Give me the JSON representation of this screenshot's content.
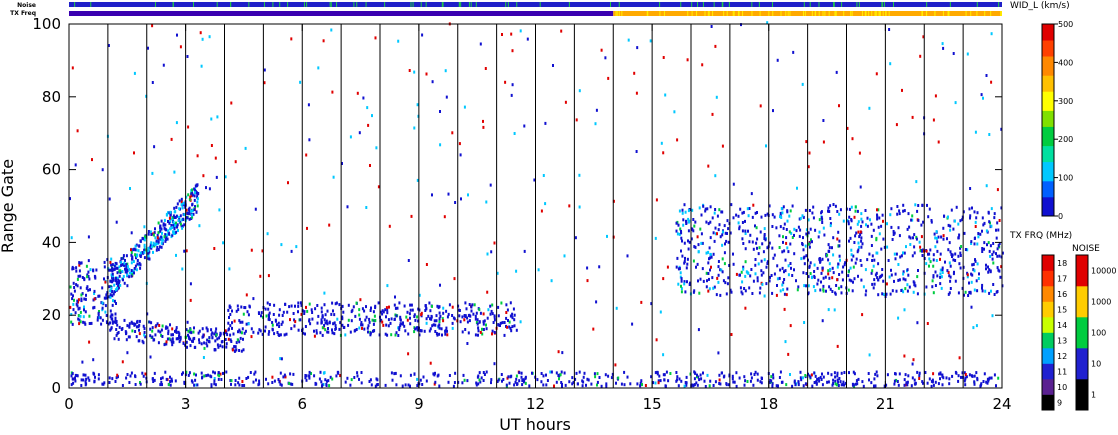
{
  "chart_data": {
    "type": "heatmap",
    "xlabel": "UT hours",
    "ylabel": "Range Gate",
    "xlim": [
      0,
      24
    ],
    "ylim": [
      0,
      100
    ],
    "xticks": [
      "0",
      "3",
      "6",
      "9",
      "12",
      "15",
      "18",
      "21",
      "24"
    ],
    "yticks": [
      "0",
      "20",
      "40",
      "60",
      "80",
      "100"
    ],
    "scan_boundaries_hours": [
      1,
      2,
      3,
      4,
      5,
      6,
      7,
      8,
      9,
      10,
      11,
      12,
      13,
      14,
      15,
      16,
      17,
      18,
      19,
      20,
      21,
      22,
      23
    ],
    "grid": false,
    "strips": {
      "noise": {
        "label": "Noise",
        "base_color": "#2020c8",
        "spike_color": "#22cc44"
      },
      "tx_freq": {
        "label": "TX Freq",
        "segments": [
          {
            "from_hour": 0,
            "to_hour": 14,
            "color": "#3a00b0"
          },
          {
            "from_hour": 14,
            "to_hour": 24,
            "color": "#ffaa00"
          }
        ]
      }
    },
    "main_colorbar": {
      "title": "WID_L (km/s)",
      "min": 0,
      "max": 500,
      "ticks": [
        "0",
        "100",
        "200",
        "300",
        "400",
        "500"
      ],
      "colors": [
        "#1010d0",
        "#00c8ff",
        "#00cc40",
        "#ffff00",
        "#ff8800",
        "#e00000"
      ]
    },
    "freq_colorbar": {
      "title": "TX FRQ (MHz)",
      "ticks": [
        "9",
        "10",
        "11",
        "12",
        "13",
        "14",
        "15",
        "16",
        "17",
        "18"
      ],
      "colors": [
        "#000000",
        "#5a2090",
        "#2020d0",
        "#00a0ff",
        "#00cc60",
        "#c8ff00",
        "#ffcc00",
        "#ff8800",
        "#ff3000",
        "#e00000"
      ]
    },
    "noise_colorbar": {
      "title": "NOISE",
      "ticks": [
        "1",
        "10",
        "100",
        "1000",
        "10000"
      ],
      "colors": [
        "#000000",
        "#2020d0",
        "#00cc40",
        "#ffcc00",
        "#e00000"
      ]
    },
    "echo_regions": [
      {
        "name": "near-range band",
        "x": [
          0,
          24
        ],
        "y": [
          0,
          4
        ],
        "value": 60
      },
      {
        "name": "early arc",
        "x": [
          0,
          1.2
        ],
        "y": [
          17,
          35
        ],
        "value": 90
      },
      {
        "name": "rising branch",
        "x": [
          1.0,
          3.3
        ],
        "y": [
          28,
          52
        ],
        "value": 110
      },
      {
        "name": "lower branch",
        "x": [
          1.0,
          4.5
        ],
        "y": [
          9,
          18
        ],
        "value": 70
      },
      {
        "name": "mid band",
        "x": [
          4,
          11.5
        ],
        "y": [
          14,
          23
        ],
        "value": 80
      },
      {
        "name": "ionospheric band",
        "x": [
          15.6,
          24
        ],
        "y": [
          25,
          50
        ],
        "value": 95
      }
    ]
  }
}
